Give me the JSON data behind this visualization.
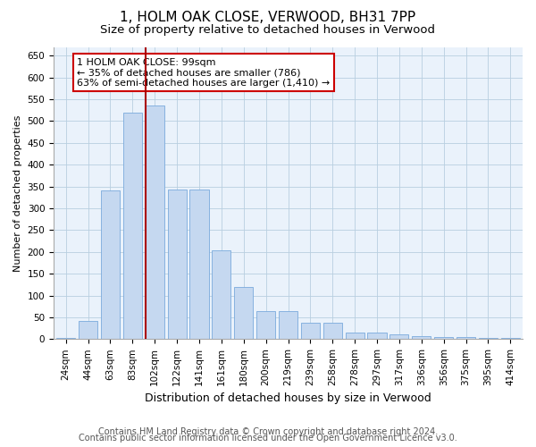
{
  "title": "1, HOLM OAK CLOSE, VERWOOD, BH31 7PP",
  "subtitle": "Size of property relative to detached houses in Verwood",
  "xlabel": "Distribution of detached houses by size in Verwood",
  "ylabel": "Number of detached properties",
  "categories": [
    "24sqm",
    "44sqm",
    "63sqm",
    "83sqm",
    "102sqm",
    "122sqm",
    "141sqm",
    "161sqm",
    "180sqm",
    "200sqm",
    "219sqm",
    "239sqm",
    "258sqm",
    "278sqm",
    "297sqm",
    "317sqm",
    "336sqm",
    "356sqm",
    "375sqm",
    "395sqm",
    "414sqm"
  ],
  "values": [
    3,
    42,
    340,
    520,
    535,
    343,
    343,
    204,
    120,
    65,
    65,
    37,
    37,
    16,
    14,
    11,
    7,
    5,
    5,
    2,
    3
  ],
  "bar_color": "#c5d8f0",
  "bar_edge_color": "#7aaadc",
  "vline_index": 4,
  "vline_color": "#aa0000",
  "ylim": [
    0,
    670
  ],
  "yticks": [
    0,
    50,
    100,
    150,
    200,
    250,
    300,
    350,
    400,
    450,
    500,
    550,
    600,
    650
  ],
  "annotation_text": "1 HOLM OAK CLOSE: 99sqm\n← 35% of detached houses are smaller (786)\n63% of semi-detached houses are larger (1,410) →",
  "annotation_box_color": "#ffffff",
  "annotation_box_edge_color": "#cc0000",
  "footer_line1": "Contains HM Land Registry data © Crown copyright and database right 2024.",
  "footer_line2": "Contains public sector information licensed under the Open Government Licence v3.0.",
  "bg_color": "#ffffff",
  "plot_bg_color": "#eaf2fb",
  "grid_color": "#b8cfe0",
  "title_fontsize": 11,
  "subtitle_fontsize": 9.5,
  "xlabel_fontsize": 9,
  "ylabel_fontsize": 8,
  "tick_fontsize": 7.5,
  "annotation_fontsize": 8,
  "footer_fontsize": 7
}
